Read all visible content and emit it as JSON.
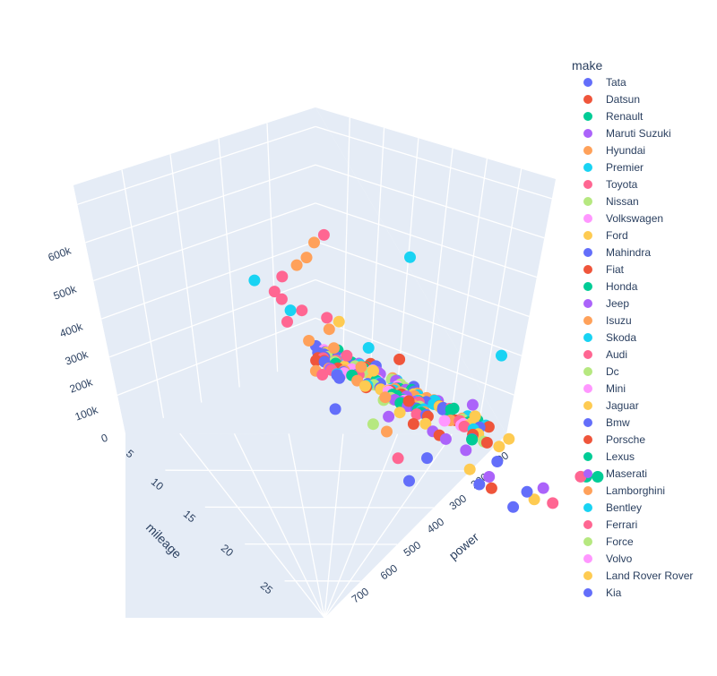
{
  "chart_data": {
    "type": "scatter3d",
    "legend": {
      "title": "make",
      "placement": "right",
      "entries": [
        {
          "name": "Tata",
          "color": "#636efa"
        },
        {
          "name": "Datsun",
          "color": "#EF553B"
        },
        {
          "name": "Renault",
          "color": "#00cc96"
        },
        {
          "name": "Maruti Suzuki",
          "color": "#ab63fa"
        },
        {
          "name": "Hyundai",
          "color": "#FFA15A"
        },
        {
          "name": "Premier",
          "color": "#19d3f3"
        },
        {
          "name": "Toyota",
          "color": "#FF6692"
        },
        {
          "name": "Nissan",
          "color": "#B6E880"
        },
        {
          "name": "Volkswagen",
          "color": "#FF97FF"
        },
        {
          "name": "Ford",
          "color": "#FECB52"
        },
        {
          "name": "Mahindra",
          "color": "#636efa"
        },
        {
          "name": "Fiat",
          "color": "#EF553B"
        },
        {
          "name": "Honda",
          "color": "#00cc96"
        },
        {
          "name": "Jeep",
          "color": "#ab63fa"
        },
        {
          "name": "Isuzu",
          "color": "#FFA15A"
        },
        {
          "name": "Skoda",
          "color": "#19d3f3"
        },
        {
          "name": "Audi",
          "color": "#FF6692"
        },
        {
          "name": "Dc",
          "color": "#B6E880"
        },
        {
          "name": "Mini",
          "color": "#FF97FF"
        },
        {
          "name": "Jaguar",
          "color": "#FECB52"
        },
        {
          "name": "Bmw",
          "color": "#636efa"
        },
        {
          "name": "Porsche",
          "color": "#EF553B"
        },
        {
          "name": "Lexus",
          "color": "#00cc96"
        },
        {
          "name": "Maserati",
          "color": "#ab63fa"
        },
        {
          "name": "Lamborghini",
          "color": "#FFA15A"
        },
        {
          "name": "Bentley",
          "color": "#19d3f3"
        },
        {
          "name": "Ferrari",
          "color": "#FF6692"
        },
        {
          "name": "Force",
          "color": "#B6E880"
        },
        {
          "name": "Volvo",
          "color": "#FF97FF"
        },
        {
          "name": "Land Rover Rover",
          "color": "#FECB52"
        },
        {
          "name": "Kia",
          "color": "#636efa"
        }
      ]
    },
    "axes": {
      "x": {
        "title": "power",
        "ticks": [
          "100",
          "200",
          "300",
          "400",
          "500",
          "600",
          "700"
        ],
        "range": [
          50,
          720
        ]
      },
      "y": {
        "title": "mileage",
        "ticks": [
          "5",
          "10",
          "15",
          "20",
          "25"
        ],
        "range": [
          3,
          28
        ]
      },
      "z": {
        "title": "",
        "ticks": [
          "0",
          "100k",
          "200k",
          "300k",
          "400k",
          "500k",
          "600k"
        ],
        "range": [
          0,
          650000
        ]
      }
    },
    "background_color": "#e5ecf6",
    "grid": true,
    "points_note": "dense cloud of ~hundreds of points clustered at low power / high mileage / low price, spreading toward high price at low mileage",
    "points": [
      {
        "make": "Toyota",
        "power": 450,
        "mileage": 5,
        "price": 560000
      },
      {
        "make": "Hyundai",
        "power": 430,
        "mileage": 5,
        "price": 540000
      },
      {
        "make": "Hyundai",
        "power": 380,
        "mileage": 6,
        "price": 500000
      },
      {
        "make": "Hyundai",
        "power": 400,
        "mileage": 6,
        "price": 520000
      },
      {
        "make": "Toyota",
        "power": 350,
        "mileage": 6,
        "price": 470000
      },
      {
        "make": "Toyota",
        "power": 320,
        "mileage": 7,
        "price": 450000
      },
      {
        "make": "Premier",
        "power": 300,
        "mileage": 6,
        "price": 460000
      },
      {
        "make": "Premier",
        "power": 560,
        "mileage": 8,
        "price": 560000
      },
      {
        "make": "Toyota",
        "power": 330,
        "mileage": 7,
        "price": 430000
      },
      {
        "make": "Toyota",
        "power": 350,
        "mileage": 8,
        "price": 420000
      },
      {
        "make": "Premier",
        "power": 330,
        "mileage": 8,
        "price": 420000
      },
      {
        "make": "Toyota",
        "power": 380,
        "mileage": 9,
        "price": 420000
      },
      {
        "make": "Ford",
        "power": 400,
        "mileage": 9,
        "price": 410000
      },
      {
        "make": "Hyundai",
        "power": 380,
        "mileage": 9,
        "price": 390000
      },
      {
        "make": "Toyota",
        "power": 320,
        "mileage": 8,
        "price": 390000
      },
      {
        "make": "Hyundai",
        "power": 340,
        "mileage": 9,
        "price": 360000
      },
      {
        "make": "Hyundai",
        "power": 370,
        "mileage": 10,
        "price": 360000
      },
      {
        "make": "Premier",
        "power": 420,
        "mileage": 11,
        "price": 380000
      },
      {
        "make": "Fiat",
        "power": 470,
        "mileage": 11,
        "price": 350000
      },
      {
        "make": "Premier",
        "power": 640,
        "mileage": 12,
        "price": 380000
      },
      {
        "make": "Toyota",
        "power": 390,
        "mileage": 10,
        "price": 340000
      },
      {
        "make": "Hyundai",
        "power": 400,
        "mileage": 11,
        "price": 330000
      },
      {
        "make": "Ford",
        "power": 420,
        "mileage": 11,
        "price": 320000
      },
      {
        "make": "Hyundai",
        "power": 330,
        "mileage": 10,
        "price": 300000
      },
      {
        "make": "Toyota",
        "power": 340,
        "mileage": 10,
        "price": 290000
      },
      {
        "make": "Ford",
        "power": 400,
        "mileage": 11,
        "price": 280000
      },
      {
        "make": "Hyundai",
        "power": 420,
        "mileage": 12,
        "price": 270000
      },
      {
        "make": "Fiat",
        "power": 460,
        "mileage": 12,
        "price": 260000
      },
      {
        "make": "Maruti Suzuki",
        "power": 560,
        "mileage": 13,
        "price": 270000
      },
      {
        "make": "Ford",
        "power": 560,
        "mileage": 13,
        "price": 240000
      },
      {
        "make": "Ford",
        "power": 440,
        "mileage": 12,
        "price": 230000
      },
      {
        "make": "Ford",
        "power": 470,
        "mileage": 13,
        "price": 220000
      },
      {
        "make": "Fiat",
        "power": 460,
        "mileage": 12,
        "price": 200000
      },
      {
        "make": "Maruti Suzuki",
        "power": 430,
        "mileage": 11,
        "price": 200000
      },
      {
        "make": "Mahindra",
        "power": 350,
        "mileage": 10,
        "price": 200000
      },
      {
        "make": "Nissan",
        "power": 400,
        "mileage": 11,
        "price": 180000
      },
      {
        "make": "Maruti Suzuki",
        "power": 480,
        "mileage": 13,
        "price": 200000
      },
      {
        "make": "Fiat",
        "power": 490,
        "mileage": 13,
        "price": 190000
      },
      {
        "make": "Hyundai",
        "power": 410,
        "mileage": 12,
        "price": 180000
      },
      {
        "make": "Maruti Suzuki",
        "power": 500,
        "mileage": 13,
        "price": 180000
      },
      {
        "make": "Fiat",
        "power": 560,
        "mileage": 14,
        "price": 190000
      },
      {
        "make": "Ford",
        "power": 600,
        "mileage": 14,
        "price": 200000
      },
      {
        "make": "Ford",
        "power": 580,
        "mileage": 14,
        "price": 180000
      },
      {
        "make": "Maruti Suzuki",
        "power": 520,
        "mileage": 14,
        "price": 170000
      },
      {
        "make": "Mahindra",
        "power": 560,
        "mileage": 15,
        "price": 160000
      },
      {
        "make": "Mahindra",
        "power": 460,
        "mileage": 13,
        "price": 130000
      },
      {
        "make": "Ford",
        "power": 520,
        "mileage": 14,
        "price": 120000
      },
      {
        "make": "Toyota",
        "power": 420,
        "mileage": 12,
        "price": 110000
      },
      {
        "make": "Maruti Suzuki",
        "power": 540,
        "mileage": 15,
        "price": 120000
      },
      {
        "make": "Mahindra",
        "power": 420,
        "mileage": 13,
        "price": 70000
      },
      {
        "make": "Mahindra",
        "power": 520,
        "mileage": 15,
        "price": 100000
      },
      {
        "make": "Fiat",
        "power": 540,
        "mileage": 15,
        "price": 90000
      },
      {
        "make": "Ford",
        "power": 600,
        "mileage": 16,
        "price": 80000
      },
      {
        "make": "Maruti Suzuki",
        "power": 620,
        "mileage": 16,
        "price": 110000
      },
      {
        "make": "Mahindra",
        "power": 590,
        "mileage": 16,
        "price": 100000
      },
      {
        "make": "Toyota",
        "power": 620,
        "mileage": 17,
        "price": 90000
      },
      {
        "make": "Honda",
        "power": 720,
        "mileage": 16,
        "price": 140000
      },
      {
        "make": "Honda",
        "power": 700,
        "mileage": 16,
        "price": 140000
      },
      {
        "make": "Toyota",
        "power": 690,
        "mileage": 16,
        "price": 140000
      },
      {
        "make": "Mahindra",
        "power": 560,
        "mileage": 16,
        "price": 60000
      }
    ],
    "cluster_note": "plus a dense band along the low-price floor"
  }
}
